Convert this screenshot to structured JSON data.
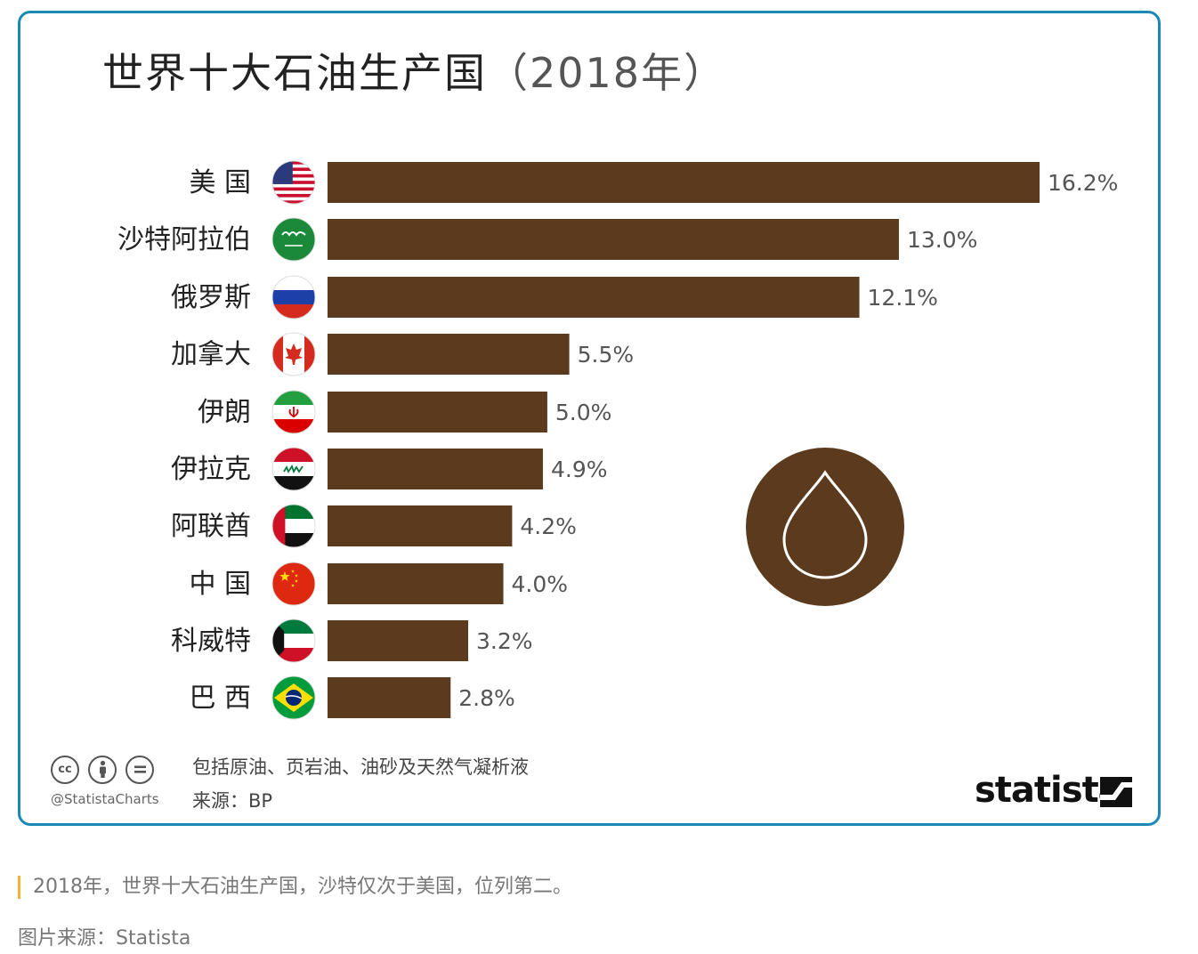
{
  "chart_data": {
    "type": "bar",
    "orientation": "horizontal",
    "title": "世界十大石油生产国",
    "title_year": "（2018年）",
    "categories": [
      "美 国",
      "沙特阿拉伯",
      "俄罗斯",
      "加拿大",
      "伊朗",
      "伊拉克",
      "阿联酋",
      "中 国",
      "科威特",
      "巴 西"
    ],
    "values": [
      16.2,
      13.0,
      12.1,
      5.5,
      5.0,
      4.9,
      4.2,
      4.0,
      3.2,
      2.8
    ],
    "value_labels": [
      "16.2%",
      "13.0%",
      "12.1%",
      "5.5%",
      "5.0%",
      "4.9%",
      "4.2%",
      "4.0%",
      "3.2%",
      "2.8%"
    ],
    "flags": [
      "us-flag-icon",
      "saudi-arabia-flag-icon",
      "russia-flag-icon",
      "canada-flag-icon",
      "iran-flag-icon",
      "iraq-flag-icon",
      "uae-flag-icon",
      "china-flag-icon",
      "kuwait-flag-icon",
      "brazil-flag-icon"
    ],
    "bar_color": "#5c3a1e",
    "xlim": [
      0,
      16.2
    ],
    "grid": false,
    "legend": "none"
  },
  "footer": {
    "note": "包括原油、页岩油、油砂及天然气凝析液",
    "source": "来源：BP",
    "handle": "@StatistaCharts",
    "license_icons": [
      "cc-icon",
      "by-icon",
      "nd-icon"
    ],
    "cc_label": "cc",
    "brand": "statista"
  },
  "caption": "2018年，世界十大石油生产国，沙特仅次于美国，位列第二。",
  "credit": "图片来源：Statista",
  "colors": {
    "border": "#1a8ab5",
    "accent_bar": "#f2b233",
    "bar": "#5c3a1e"
  }
}
